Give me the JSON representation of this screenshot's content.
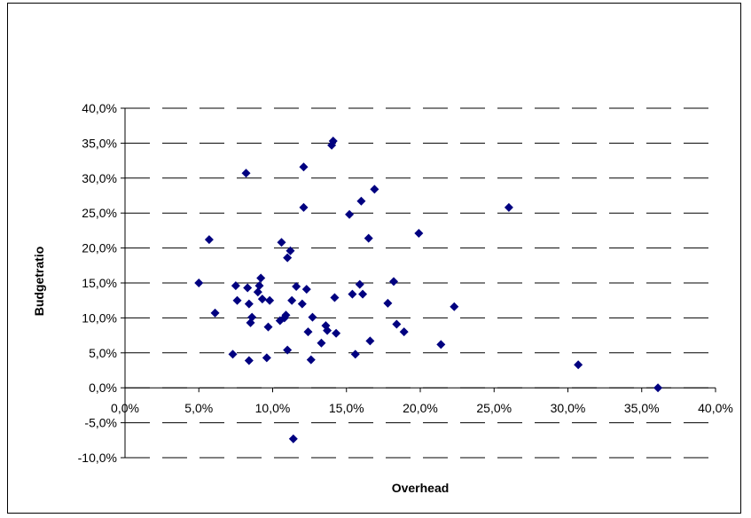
{
  "chart_data": {
    "type": "scatter",
    "title": "",
    "xlabel": "Overhead",
    "ylabel": "Budgetratio",
    "xlim": [
      0,
      0.4
    ],
    "ylim": [
      -0.1,
      0.4
    ],
    "x_ticks": [
      "0,0%",
      "5,0%",
      "10,0%",
      "15,0%",
      "20,0%",
      "25,0%",
      "30,0%",
      "35,0%",
      "40,0%"
    ],
    "y_ticks": [
      "-10,0%",
      "-5,0%",
      "0,0%",
      "5,0%",
      "10,0%",
      "15,0%",
      "20,0%",
      "25,0%",
      "30,0%",
      "35,0%",
      "40,0%"
    ],
    "grid": "horizontal-dashed",
    "legend": "none",
    "marker": "diamond",
    "color": "#000080",
    "points": [
      [
        0.05,
        0.15
      ],
      [
        0.057,
        0.212
      ],
      [
        0.061,
        0.107
      ],
      [
        0.073,
        0.048
      ],
      [
        0.075,
        0.146
      ],
      [
        0.076,
        0.125
      ],
      [
        0.082,
        0.307
      ],
      [
        0.083,
        0.143
      ],
      [
        0.084,
        0.12
      ],
      [
        0.084,
        0.039
      ],
      [
        0.085,
        0.093
      ],
      [
        0.086,
        0.101
      ],
      [
        0.09,
        0.137
      ],
      [
        0.091,
        0.146
      ],
      [
        0.092,
        0.157
      ],
      [
        0.093,
        0.127
      ],
      [
        0.096,
        0.043
      ],
      [
        0.097,
        0.087
      ],
      [
        0.098,
        0.125
      ],
      [
        0.105,
        0.096
      ],
      [
        0.106,
        0.208
      ],
      [
        0.108,
        0.1
      ],
      [
        0.109,
        0.104
      ],
      [
        0.11,
        0.186
      ],
      [
        0.11,
        0.054
      ],
      [
        0.112,
        0.196
      ],
      [
        0.113,
        0.125
      ],
      [
        0.114,
        -0.073
      ],
      [
        0.116,
        0.145
      ],
      [
        0.12,
        0.12
      ],
      [
        0.121,
        0.316
      ],
      [
        0.121,
        0.258
      ],
      [
        0.123,
        0.141
      ],
      [
        0.124,
        0.08
      ],
      [
        0.126,
        0.04
      ],
      [
        0.127,
        0.101
      ],
      [
        0.133,
        0.064
      ],
      [
        0.136,
        0.089
      ],
      [
        0.137,
        0.082
      ],
      [
        0.14,
        0.347
      ],
      [
        0.141,
        0.353
      ],
      [
        0.142,
        0.129
      ],
      [
        0.143,
        0.078
      ],
      [
        0.152,
        0.248
      ],
      [
        0.154,
        0.134
      ],
      [
        0.156,
        0.048
      ],
      [
        0.159,
        0.148
      ],
      [
        0.16,
        0.267
      ],
      [
        0.161,
        0.134
      ],
      [
        0.165,
        0.214
      ],
      [
        0.166,
        0.067
      ],
      [
        0.169,
        0.284
      ],
      [
        0.178,
        0.121
      ],
      [
        0.182,
        0.152
      ],
      [
        0.184,
        0.091
      ],
      [
        0.189,
        0.08
      ],
      [
        0.199,
        0.221
      ],
      [
        0.214,
        0.062
      ],
      [
        0.223,
        0.116
      ],
      [
        0.26,
        0.258
      ],
      [
        0.307,
        0.033
      ],
      [
        0.361,
        0.0
      ]
    ]
  }
}
